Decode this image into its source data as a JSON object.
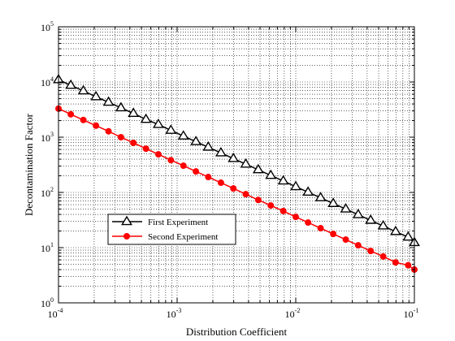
{
  "chart_data": {
    "type": "line",
    "xscale": "log",
    "yscale": "log",
    "xlim": [
      0.0001,
      0.1
    ],
    "ylim": [
      1,
      100000
    ],
    "xlabel": "Distribution Coefficient",
    "ylabel": "Decontamination Factor",
    "grid": true,
    "legend_position": "lower-left",
    "x_ticks": [
      {
        "value": 0.0001,
        "base": "10",
        "exp": "-4"
      },
      {
        "value": 0.001,
        "base": "10",
        "exp": "-3"
      },
      {
        "value": 0.01,
        "base": "10",
        "exp": "-2"
      },
      {
        "value": 0.1,
        "base": "10",
        "exp": "-1"
      }
    ],
    "y_ticks": [
      {
        "value": 1,
        "base": "10",
        "exp": "0"
      },
      {
        "value": 10,
        "base": "10",
        "exp": "1"
      },
      {
        "value": 100,
        "base": "10",
        "exp": "2"
      },
      {
        "value": 1000,
        "base": "10",
        "exp": "3"
      },
      {
        "value": 10000,
        "base": "10",
        "exp": "4"
      },
      {
        "value": 100000,
        "base": "10",
        "exp": "5"
      }
    ],
    "x": [
      0.0001,
      0.000127,
      0.000162,
      0.000207,
      0.000264,
      0.000336,
      0.000428,
      0.000546,
      0.000695,
      0.000886,
      0.00113,
      0.00144,
      0.00183,
      0.00234,
      0.00298,
      0.00379,
      0.00483,
      0.00616,
      0.00785,
      0.01,
      0.0127,
      0.0162,
      0.0207,
      0.0264,
      0.0336,
      0.0428,
      0.0546,
      0.0695,
      0.0886,
      0.1
    ],
    "series": [
      {
        "name": "First Experiment",
        "color": "#000000",
        "marker": "triangle",
        "values": [
          11000,
          8700,
          6900,
          5400,
          4300,
          3400,
          2700,
          2100,
          1700,
          1330,
          1050,
          830,
          660,
          520,
          410,
          325,
          257,
          203,
          161,
          127,
          101,
          80,
          63,
          50,
          39.5,
          31.2,
          24.7,
          19.5,
          15.5,
          12.3
        ]
      },
      {
        "name": "Second Experiment",
        "color": "#ff0000",
        "marker": "circle",
        "values": [
          3300,
          2600,
          2050,
          1620,
          1280,
          1000,
          790,
          620,
          490,
          385,
          305,
          240,
          190,
          150,
          118,
          93,
          73,
          58,
          46,
          36,
          28.5,
          22.5,
          17.7,
          14,
          11,
          8.7,
          6.9,
          5.4,
          4.8,
          4.0
        ]
      }
    ]
  }
}
